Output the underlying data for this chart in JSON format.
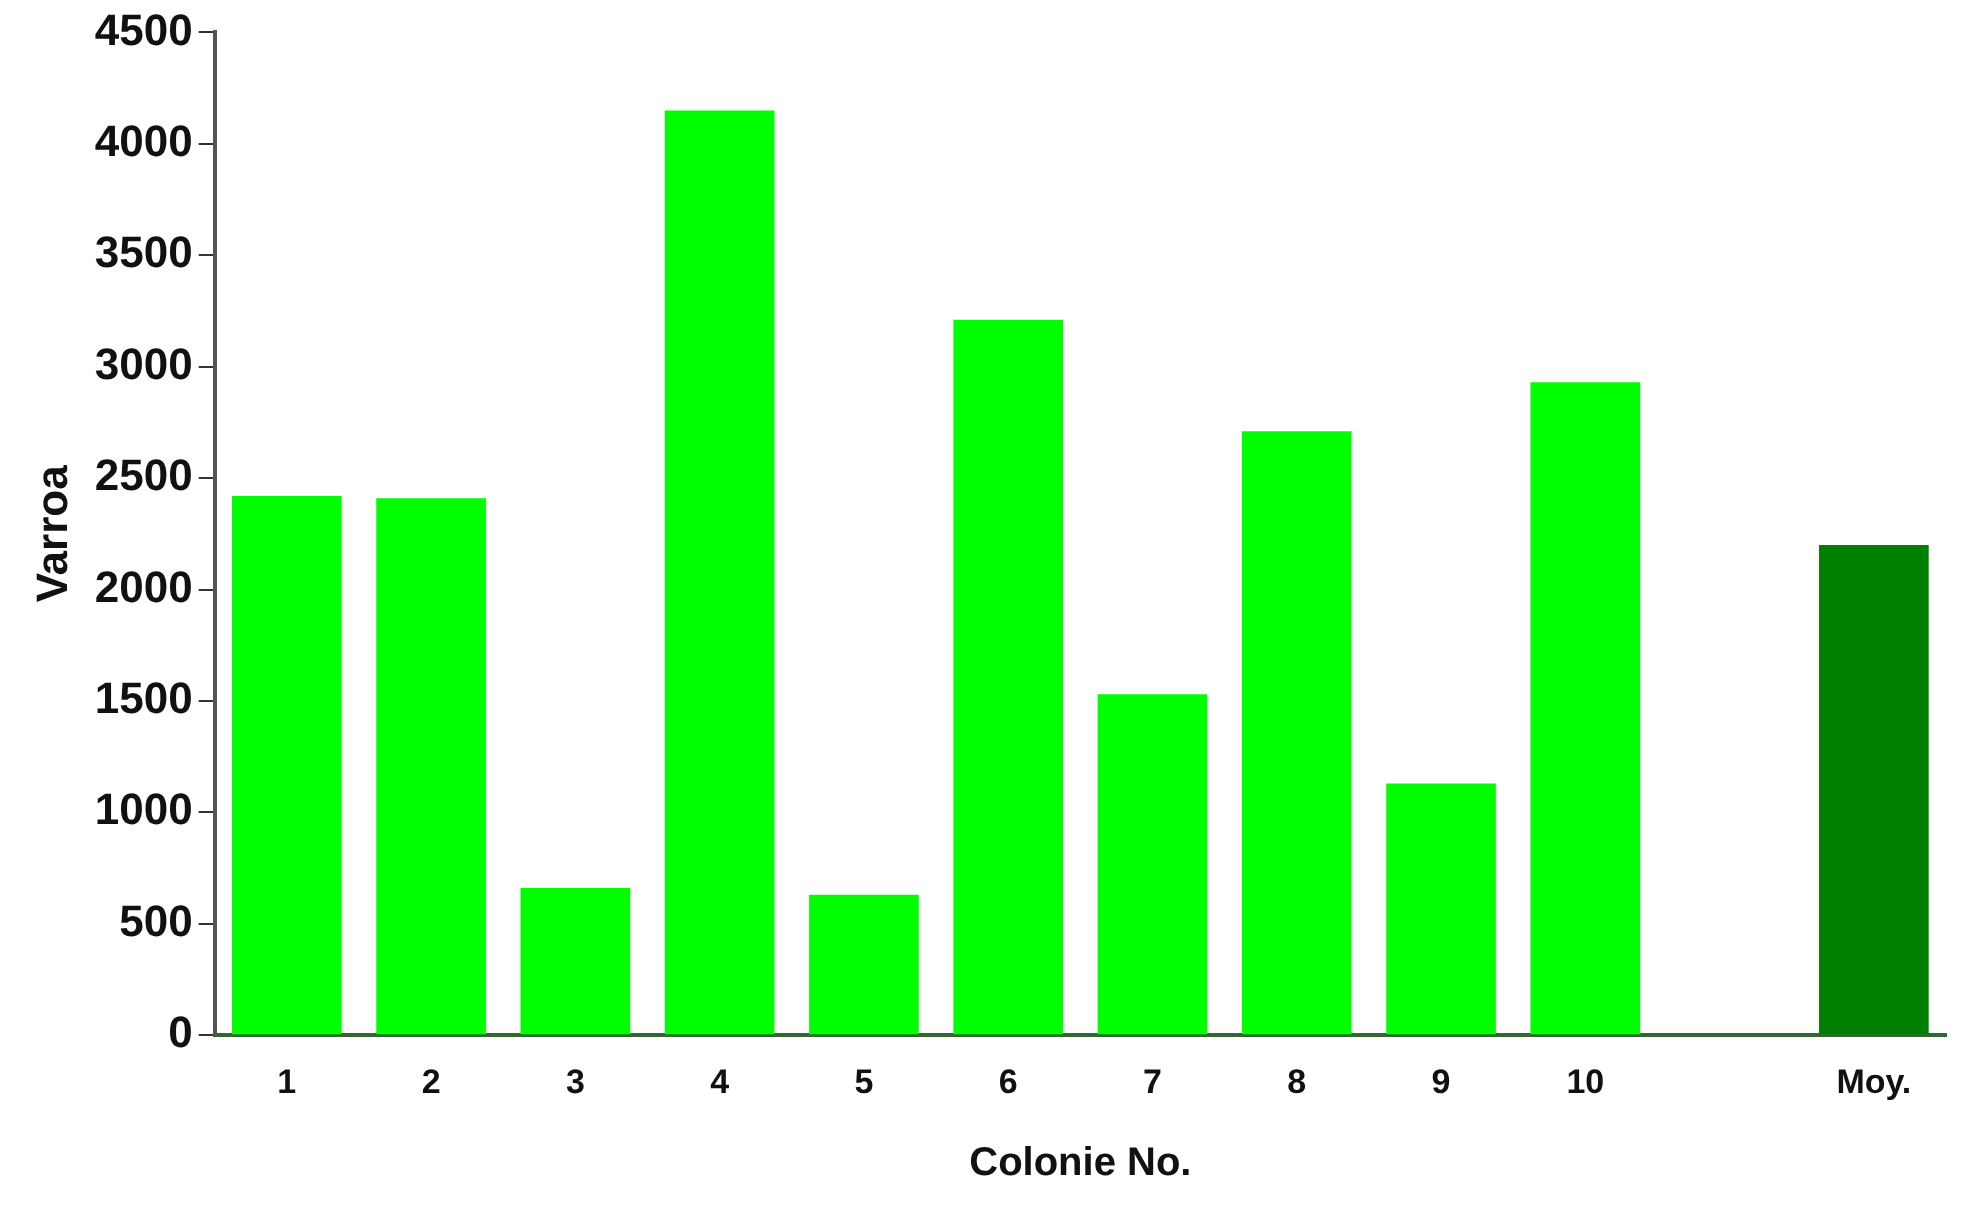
{
  "chart_data": {
    "type": "bar",
    "xlabel": "Colonie No.",
    "ylabel": "Varroa",
    "categories": [
      "1",
      "2",
      "3",
      "4",
      "5",
      "6",
      "7",
      "8",
      "9",
      "10",
      null,
      "Moy."
    ],
    "values": [
      2420,
      2410,
      660,
      4150,
      630,
      3210,
      1530,
      2710,
      1130,
      2930,
      null,
      2200
    ],
    "colors": [
      "#00ff00",
      "#00ff00",
      "#00ff00",
      "#00ff00",
      "#00ff00",
      "#00ff00",
      "#00ff00",
      "#00ff00",
      "#00ff00",
      "#00ff00",
      "#00ff00",
      "#008000"
    ],
    "ylim": [
      0,
      4500
    ],
    "yticks": [
      0,
      500,
      1000,
      1500,
      2000,
      2500,
      3000,
      3500,
      4000,
      4500
    ],
    "grid": false,
    "legend": false
  }
}
